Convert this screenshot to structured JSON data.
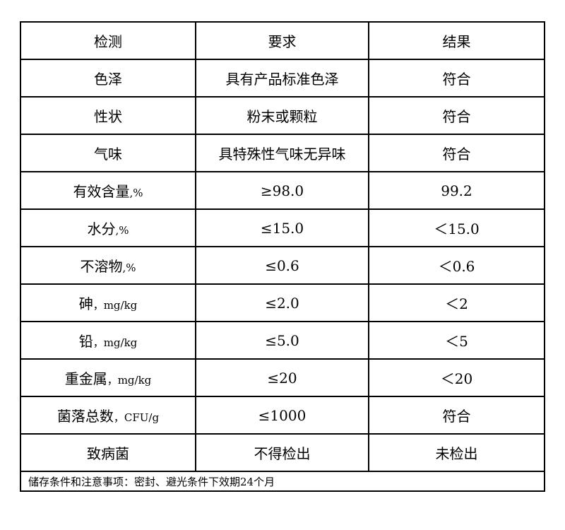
{
  "headers": [
    "检测",
    "要求",
    "结果"
  ],
  "rows": [
    {
      "item": "色泽",
      "unit": "",
      "requirement": "具有产品标准色泽",
      "result": "符合"
    },
    {
      "item": "性状",
      "unit": "",
      "requirement": "粉末或颗粒",
      "result": "符合"
    },
    {
      "item": "气味",
      "unit": "",
      "requirement": "具特殊性气味无异味",
      "result": "符合"
    },
    {
      "item": "有效含量",
      "unit": ",%",
      "requirement": "≥98.0",
      "result": "99.2"
    },
    {
      "item": "水分",
      "unit": ",%",
      "requirement": "≤15.0",
      "result": "＜15.0"
    },
    {
      "item": "不溶物",
      "unit": ",%",
      "requirement": "≤0.6",
      "result": "＜0.6"
    },
    {
      "item": "砷",
      "unit": "，mg/kg",
      "requirement": "≤2.0",
      "result": "＜2"
    },
    {
      "item": "铅",
      "unit": "，mg/kg",
      "requirement": "≤5.0",
      "result": "＜5"
    },
    {
      "item": "重金属",
      "unit": "，mg/kg",
      "requirement": "≤20",
      "result": "＜20"
    },
    {
      "item": "菌落总数",
      "unit": "，CFU/g",
      "requirement": "≤1000",
      "result": "符合"
    },
    {
      "item": "致病菌",
      "unit": "",
      "requirement": "不得检出",
      "result": "未检出"
    }
  ],
  "note": "储存条件和注意事项：密封、避光条件下效期24个月"
}
